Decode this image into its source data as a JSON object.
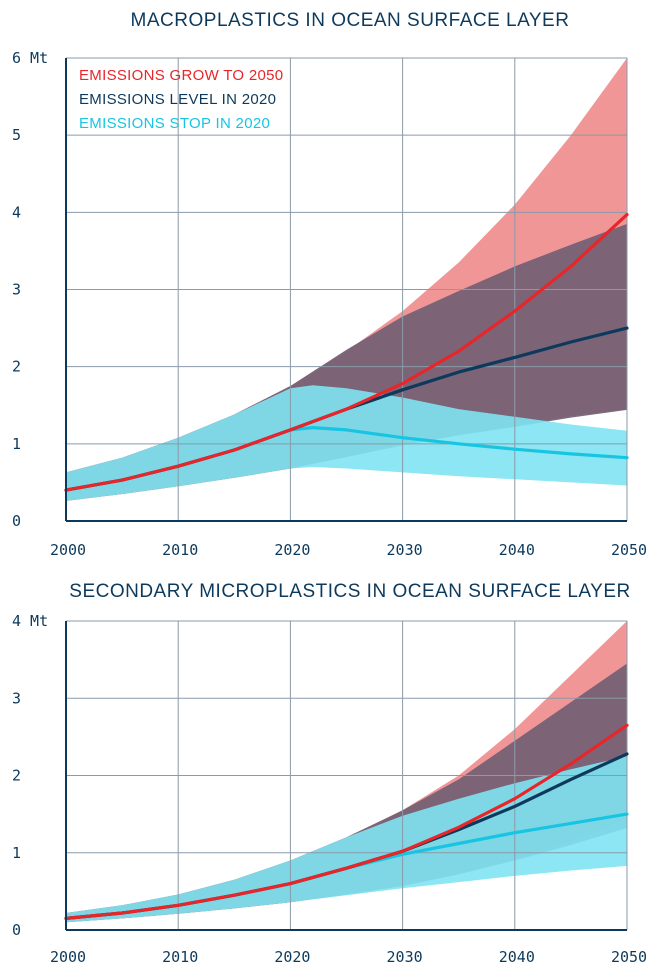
{
  "chart_data": [
    {
      "type": "area",
      "title": "MACROPLASTICS IN OCEAN SURFACE LAYER",
      "xlabel": "",
      "ylabel": "",
      "xlim": [
        2000,
        2050
      ],
      "ylim": [
        0,
        6
      ],
      "x_ticks": [
        2000,
        2010,
        2020,
        2030,
        2040,
        2050
      ],
      "x_tick_labels": [
        "2000",
        "2010",
        "2020",
        "2030",
        "2040",
        "2050"
      ],
      "y_ticks": [
        0,
        1,
        2,
        3,
        4,
        5,
        6
      ],
      "y_tick_labels": [
        "0",
        "1",
        "2",
        "3",
        "4",
        "5",
        "6 Mt"
      ],
      "grid": true,
      "legend": "top-left",
      "series": [
        {
          "name": "EMISSIONS GROW TO 2050",
          "color": "#e8262a",
          "band_color": "#ef8b8b",
          "x": [
            2000,
            2005,
            2010,
            2015,
            2020,
            2025,
            2030,
            2035,
            2040,
            2045,
            2050
          ],
          "values": [
            0.4,
            0.53,
            0.71,
            0.92,
            1.18,
            1.45,
            1.78,
            2.2,
            2.72,
            3.3,
            3.97
          ],
          "upper": [
            0.63,
            0.82,
            1.08,
            1.38,
            1.75,
            2.2,
            2.72,
            3.35,
            4.1,
            5.0,
            6.0
          ],
          "lower": [
            0.26,
            0.35,
            0.45,
            0.56,
            0.68,
            0.83,
            1.0,
            1.12,
            1.24,
            1.36,
            1.45
          ]
        },
        {
          "name": "EMISSIONS LEVEL IN 2020",
          "color": "#0d3a5c",
          "band_color": "#6f5d72",
          "x": [
            2000,
            2005,
            2010,
            2015,
            2020,
            2025,
            2030,
            2035,
            2040,
            2045,
            2050
          ],
          "values": [
            0.4,
            0.53,
            0.71,
            0.92,
            1.18,
            1.45,
            1.7,
            1.93,
            2.12,
            2.32,
            2.5
          ],
          "upper": [
            0.63,
            0.82,
            1.08,
            1.38,
            1.75,
            2.22,
            2.65,
            2.98,
            3.3,
            3.58,
            3.85
          ],
          "lower": [
            0.26,
            0.35,
            0.45,
            0.56,
            0.68,
            0.83,
            0.98,
            1.11,
            1.22,
            1.34,
            1.44
          ]
        },
        {
          "name": "EMISSIONS STOP IN 2020",
          "color": "#17c5e2",
          "band_color": "#7fe3f2",
          "x": [
            2000,
            2005,
            2010,
            2015,
            2020,
            2022,
            2025,
            2030,
            2035,
            2040,
            2045,
            2050
          ],
          "values": [
            0.4,
            0.53,
            0.71,
            0.92,
            1.18,
            1.21,
            1.18,
            1.08,
            1.0,
            0.93,
            0.87,
            0.82
          ],
          "upper": [
            0.63,
            0.82,
            1.08,
            1.38,
            1.72,
            1.76,
            1.72,
            1.6,
            1.45,
            1.35,
            1.25,
            1.17
          ],
          "lower": [
            0.26,
            0.35,
            0.45,
            0.56,
            0.68,
            0.7,
            0.68,
            0.63,
            0.58,
            0.54,
            0.5,
            0.46
          ]
        }
      ]
    },
    {
      "type": "area",
      "title": "SECONDARY MICROPLASTICS IN OCEAN SURFACE LAYER",
      "xlabel": "",
      "ylabel": "",
      "xlim": [
        2000,
        2050
      ],
      "ylim": [
        0,
        4
      ],
      "x_ticks": [
        2000,
        2010,
        2020,
        2030,
        2040,
        2050
      ],
      "x_tick_labels": [
        "2000",
        "2010",
        "2020",
        "2030",
        "2040",
        "2050"
      ],
      "y_ticks": [
        0,
        1,
        2,
        3,
        4
      ],
      "y_tick_labels": [
        "0",
        "1",
        "2",
        "3",
        "4 Mt"
      ],
      "grid": true,
      "legend": "none",
      "series": [
        {
          "name": "EMISSIONS GROW TO 2050",
          "color": "#e8262a",
          "band_color": "#ef8b8b",
          "x": [
            2000,
            2005,
            2010,
            2015,
            2020,
            2025,
            2030,
            2035,
            2040,
            2045,
            2050
          ],
          "values": [
            0.15,
            0.22,
            0.32,
            0.45,
            0.6,
            0.8,
            1.02,
            1.33,
            1.7,
            2.15,
            2.65
          ],
          "upper": [
            0.22,
            0.32,
            0.46,
            0.65,
            0.9,
            1.2,
            1.55,
            2.0,
            2.6,
            3.3,
            4.0
          ],
          "lower": [
            0.1,
            0.15,
            0.21,
            0.28,
            0.36,
            0.46,
            0.57,
            0.73,
            0.92,
            1.15,
            1.45
          ]
        },
        {
          "name": "EMISSIONS LEVEL IN 2020",
          "color": "#0d3a5c",
          "band_color": "#6f5d72",
          "x": [
            2000,
            2005,
            2010,
            2015,
            2020,
            2025,
            2030,
            2035,
            2040,
            2045,
            2050
          ],
          "values": [
            0.15,
            0.22,
            0.32,
            0.45,
            0.6,
            0.8,
            1.02,
            1.3,
            1.6,
            1.95,
            2.28
          ],
          "upper": [
            0.22,
            0.32,
            0.46,
            0.65,
            0.9,
            1.2,
            1.55,
            1.95,
            2.45,
            2.95,
            3.45
          ],
          "lower": [
            0.1,
            0.15,
            0.21,
            0.28,
            0.36,
            0.46,
            0.57,
            0.72,
            0.9,
            1.1,
            1.32
          ]
        },
        {
          "name": "EMISSIONS STOP IN 2020",
          "color": "#17c5e2",
          "band_color": "#7fe3f2",
          "x": [
            2000,
            2005,
            2010,
            2015,
            2020,
            2025,
            2030,
            2035,
            2040,
            2045,
            2050
          ],
          "values": [
            0.15,
            0.22,
            0.32,
            0.45,
            0.6,
            0.8,
            0.98,
            1.12,
            1.26,
            1.38,
            1.5
          ],
          "upper": [
            0.22,
            0.32,
            0.46,
            0.65,
            0.9,
            1.2,
            1.48,
            1.7,
            1.9,
            2.08,
            2.25
          ],
          "lower": [
            0.1,
            0.15,
            0.21,
            0.28,
            0.36,
            0.45,
            0.54,
            0.62,
            0.7,
            0.77,
            0.83
          ]
        }
      ]
    }
  ]
}
